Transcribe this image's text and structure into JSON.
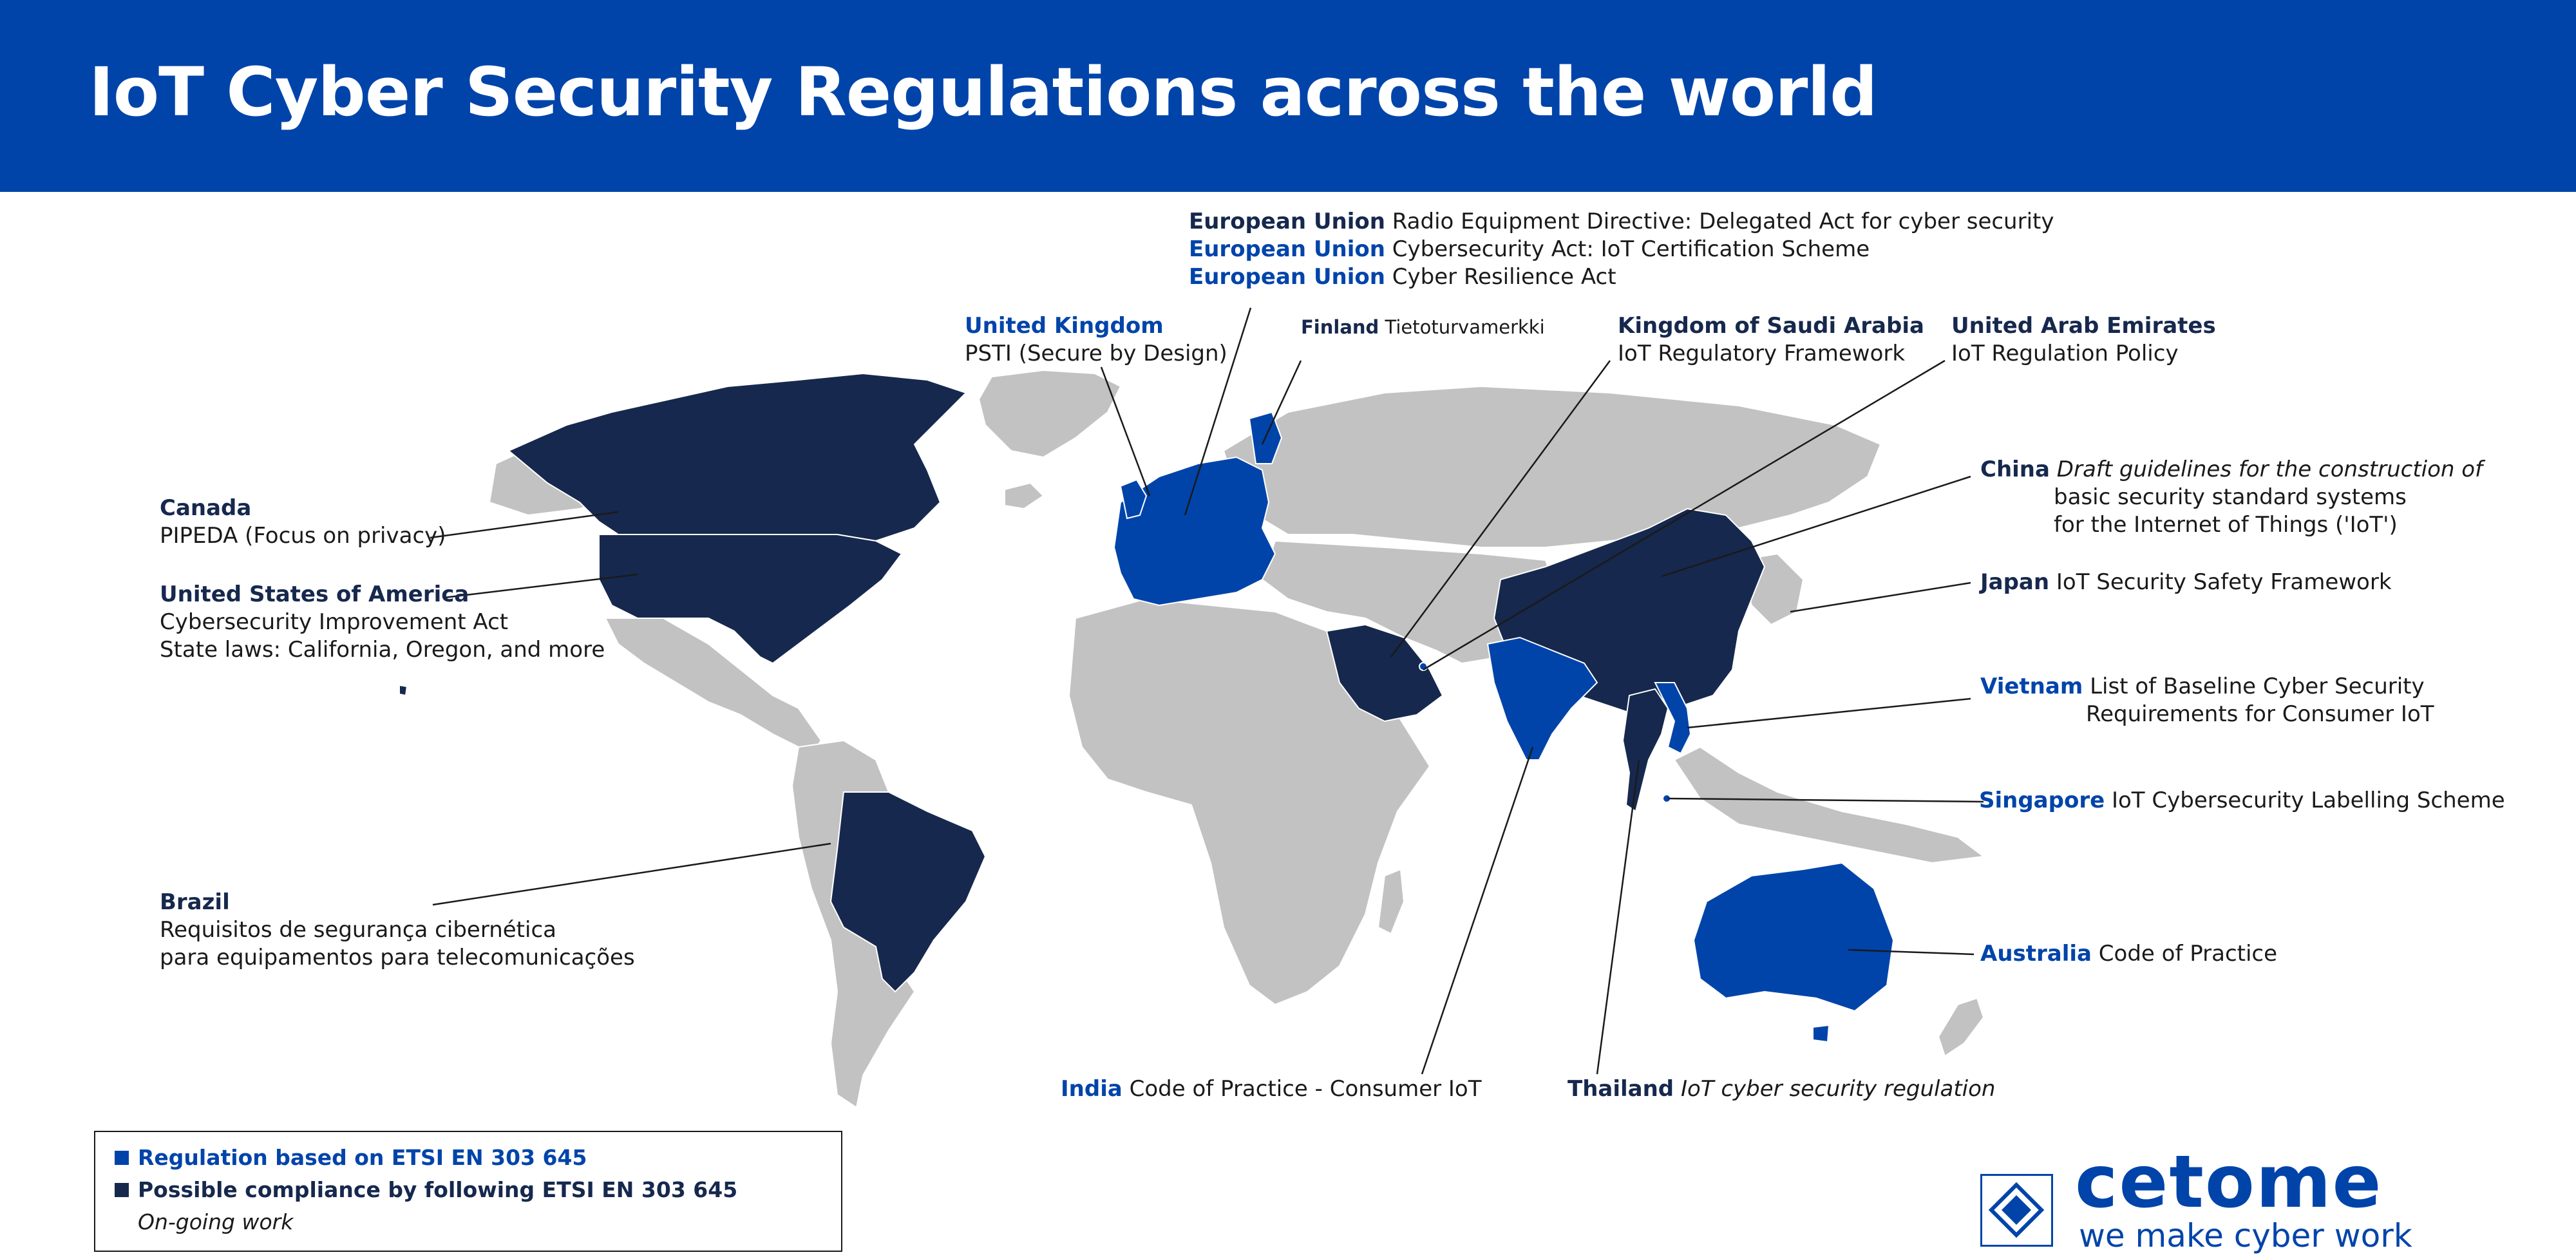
{
  "title": "IoT Cyber Security Regulations across the world",
  "colors": {
    "header": "#0044aa",
    "etsi_regulation": "#0044aa",
    "possible_compliance": "#16284d",
    "other_land": "#c2c2c2"
  },
  "labels": {
    "eu": [
      {
        "name": "European Union",
        "text": "Radio Equipment Directive: Delegated Act for cyber security"
      },
      {
        "name": "European Union",
        "text": "Cybersecurity Act: IoT Certification Scheme"
      },
      {
        "name": "European Union",
        "text": "Cyber Resilience Act"
      }
    ],
    "uk": {
      "name": "United Kingdom",
      "text": "PSTI (Secure by Design)"
    },
    "finland": {
      "name": "Finland",
      "text": "Tietoturvamerkki"
    },
    "saudi": {
      "name": "Kingdom of Saudi Arabia",
      "text": "IoT Regulatory Framework"
    },
    "uae": {
      "name": "United Arab Emirates",
      "text": "IoT Regulation Policy"
    },
    "china": {
      "name": "China",
      "lines": [
        "Draft guidelines for the construction of",
        "basic security standard systems",
        "for the Internet of Things ('IoT')"
      ]
    },
    "japan": {
      "name": "Japan",
      "text": "IoT Security Safety Framework"
    },
    "vietnam": {
      "name": "Vietnam",
      "lines": [
        "List of Baseline Cyber Security",
        "Requirements for Consumer IoT"
      ]
    },
    "singapore": {
      "name": "Singapore",
      "text": "IoT Cybersecurity Labelling Scheme"
    },
    "australia": {
      "name": "Australia",
      "text": "Code of Practice"
    },
    "india": {
      "name": "India",
      "text": "Code of Practice - Consumer IoT"
    },
    "thailand": {
      "name": "Thailand",
      "text": "IoT cyber security regulation"
    },
    "canada": {
      "name": "Canada",
      "text": "PIPEDA (Focus on privacy)"
    },
    "usa": {
      "name": "United States of America",
      "lines": [
        "Cybersecurity Improvement Act",
        "State laws: California, Oregon, and more"
      ]
    },
    "brazil": {
      "name": "Brazil",
      "lines": [
        "Requisitos de segurança cibernética",
        "para equipamentos para telecomunicações"
      ]
    }
  },
  "legend": {
    "items": [
      {
        "label": "Regulation based on ETSI EN 303 645",
        "color": "#0044aa"
      },
      {
        "label": "Possible compliance by following ETSI EN 303 645",
        "color": "#16284d"
      }
    ],
    "note": "On-going work"
  },
  "logo": {
    "name": "cetome",
    "tagline": "we make cyber work"
  }
}
